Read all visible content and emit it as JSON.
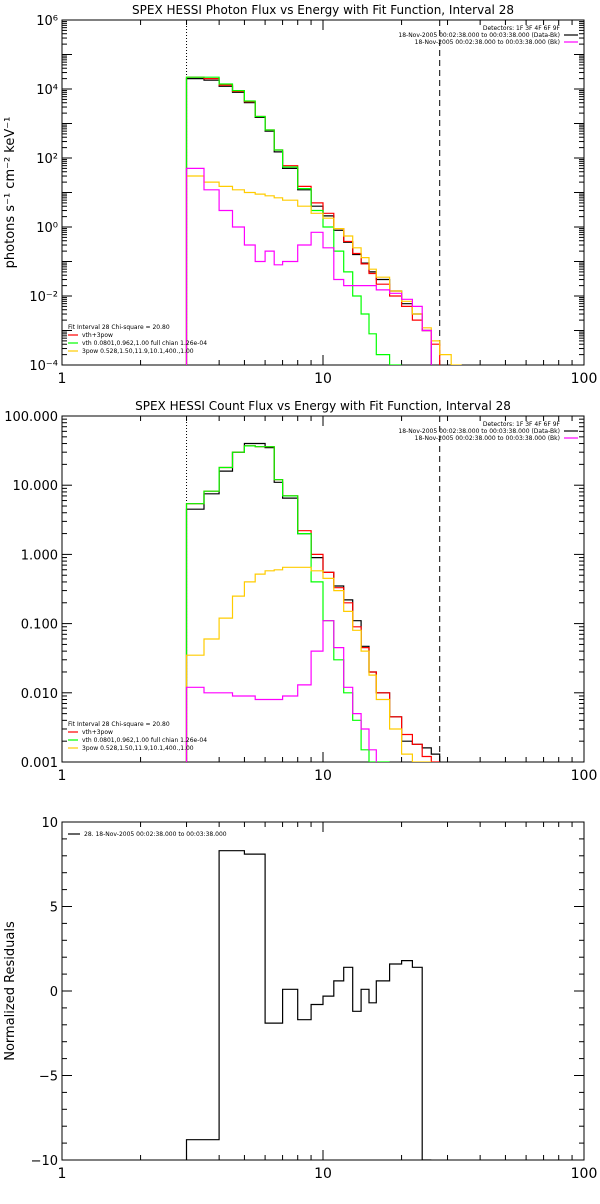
{
  "chart_data": [
    {
      "type": "line",
      "title": "SPEX HESSI Photon Flux vs Energy with Fit Function, Interval 28",
      "ylabel": "photons s⁻¹ cm⁻² keV⁻¹",
      "xlabel": "",
      "xscale": "log",
      "yscale": "log",
      "xlim": [
        1,
        100
      ],
      "ylim": [
        0.0001,
        1000000
      ],
      "xticks": [
        {
          "v": 1,
          "label": "1"
        },
        {
          "v": 10,
          "label": "10"
        },
        {
          "v": 100,
          "label": "100"
        }
      ],
      "yticks": [
        {
          "v": 0.0001,
          "label": "10⁻⁴"
        },
        {
          "v": 0.01,
          "label": "10⁻²"
        },
        {
          "v": 1,
          "label": "10⁰"
        },
        {
          "v": 100,
          "label": "10²"
        },
        {
          "v": 10000,
          "label": "10⁴"
        },
        {
          "v": 1000000,
          "label": "10⁶"
        }
      ],
      "vlines": [
        {
          "x": 3,
          "style": "dotted"
        },
        {
          "x": 28,
          "style": "dashed"
        }
      ],
      "legend_top_right": [
        {
          "text": "Detectors: 1F 3F 4F 6F 9F",
          "color": ""
        },
        {
          "text": "18-Nov-2005 00:02:38.000 to 00:03:38.000 (Data-Bk)",
          "color": "#000000"
        },
        {
          "text": "18-Nov-2005 00:02:38.000 to 00:03:38.000 (Bk)",
          "color": "#ff00ff"
        }
      ],
      "legend_bottom_left": [
        {
          "text": "Fit Interval 28   Chi-square = 20.80",
          "color": ""
        },
        {
          "text": "vth+3pow",
          "color": "#ff0000"
        },
        {
          "text": "vth 0.0801,0.962,1.00  full chian 1.26e-04",
          "color": "#00ff00"
        },
        {
          "text": "3pow 0.528,1.50,11.9,10.1,400.,1.00",
          "color": "#ffcc00"
        }
      ],
      "edges": [
        3,
        3.5,
        4,
        4.5,
        5,
        5.5,
        6,
        6.5,
        7,
        8,
        9,
        10,
        11,
        12,
        13,
        14,
        15,
        16,
        18,
        20,
        22,
        24,
        26,
        28,
        31,
        34
      ],
      "series": [
        {
          "name": "Data-Bk",
          "color": "#000000",
          "values": [
            20000,
            18000,
            12000,
            8000,
            4000,
            1500,
            600,
            150,
            50,
            12,
            4,
            2.1,
            0.8,
            0.36,
            0.16,
            0.09,
            0.05,
            0.03,
            0.014,
            0.006,
            0.003,
            0.001
          ]
        },
        {
          "name": "vth+3pow",
          "color": "#ff0000",
          "values": [
            22000,
            20000,
            13000,
            8500,
            4300,
            1600,
            650,
            170,
            60,
            15,
            5,
            2.5,
            0.9,
            0.38,
            0.17,
            0.085,
            0.045,
            0.022,
            0.01,
            0.005,
            0.002,
            0.001,
            0.0004
          ]
        },
        {
          "name": "vth",
          "color": "#00ff00",
          "values": [
            22000,
            22000,
            14000,
            9000,
            4500,
            1600,
            650,
            170,
            55,
            13,
            3,
            1,
            0.2,
            0.05,
            0.01,
            0.003,
            0.0008,
            0.0002,
            3e-05
          ]
        },
        {
          "name": "3pow",
          "color": "#ffcc00",
          "values": [
            30,
            20,
            15,
            12,
            10,
            9,
            8,
            7,
            6,
            4,
            2.5,
            1.8,
            0.9,
            0.55,
            0.25,
            0.13,
            0.06,
            0.035,
            0.014,
            0.007,
            0.003,
            0.0012,
            0.0005,
            0.0002,
            0.0001
          ]
        },
        {
          "name": "Bk",
          "color": "#ff00ff",
          "values": [
            50,
            12,
            3,
            1,
            0.3,
            0.1,
            0.2,
            0.08,
            0.1,
            0.3,
            0.7,
            0.25,
            0.03,
            0.02,
            0.02,
            0.02,
            0.02,
            0.015,
            0.012,
            0.008,
            0.005,
            0.001
          ]
        }
      ]
    },
    {
      "type": "line",
      "title": "SPEX HESSI Count Flux vs Energy with Fit Function, Interval 28",
      "ylabel": "",
      "xlabel": "",
      "xscale": "log",
      "yscale": "log",
      "xlim": [
        1,
        100
      ],
      "ylim": [
        0.001,
        100
      ],
      "xticks": [
        {
          "v": 1,
          "label": "1"
        },
        {
          "v": 10,
          "label": "10"
        },
        {
          "v": 100,
          "label": "100"
        }
      ],
      "yticks": [
        {
          "v": 0.001,
          "label": "0.001"
        },
        {
          "v": 0.01,
          "label": "0.010"
        },
        {
          "v": 0.1,
          "label": "0.100"
        },
        {
          "v": 1,
          "label": "1.000"
        },
        {
          "v": 10,
          "label": "10.000"
        },
        {
          "v": 100,
          "label": "100.000"
        }
      ],
      "vlines": [
        {
          "x": 3,
          "style": "dotted"
        },
        {
          "x": 28,
          "style": "dashed"
        }
      ],
      "legend_top_right": [
        {
          "text": "Detectors: 1F 3F 4F 6F 9F",
          "color": ""
        },
        {
          "text": "18-Nov-2005 00:02:38.000 to 00:03:38.000 (Data-Bk)",
          "color": "#000000"
        },
        {
          "text": "18-Nov-2005 00:02:38.000 to 00:03:38.000 (Bk)",
          "color": "#ff00ff"
        }
      ],
      "legend_bottom_left": [
        {
          "text": "Fit Interval 28   Chi-square = 20.80",
          "color": ""
        },
        {
          "text": "vth+3pow",
          "color": "#ff0000"
        },
        {
          "text": "vth 0.0801,0.962,1.00  full chian 1.26e-04",
          "color": "#00ff00"
        },
        {
          "text": "3pow 0.528,1.50,11.9,10.1,400.,1.00",
          "color": "#ffcc00"
        }
      ],
      "edges": [
        3,
        3.5,
        4,
        4.5,
        5,
        5.5,
        6,
        6.5,
        7,
        8,
        9,
        10,
        11,
        12,
        13,
        14,
        15,
        16,
        18,
        20,
        22,
        24,
        26,
        28,
        31
      ],
      "series": [
        {
          "name": "Data-Bk",
          "color": "#000000",
          "values": [
            4.5,
            7.5,
            16,
            30,
            40,
            40,
            35,
            11,
            6.5,
            2,
            0.9,
            0.55,
            0.35,
            0.22,
            0.11,
            0.047,
            0.02,
            0.01,
            0.0045,
            0.002,
            0.0018,
            0.0016,
            0.0013
          ]
        },
        {
          "name": "vth+3pow",
          "color": "#ff0000",
          "values": [
            5.4,
            8.2,
            18,
            30,
            37,
            36,
            36,
            12,
            7,
            2.2,
            1,
            0.55,
            0.33,
            0.2,
            0.09,
            0.045,
            0.02,
            0.01,
            0.0045,
            0.0025,
            0.0018,
            0.0012,
            0.0008
          ]
        },
        {
          "name": "vth",
          "color": "#00ff00",
          "values": [
            5.4,
            8.2,
            18,
            30,
            37,
            36,
            36,
            12,
            7,
            2,
            0.4,
            0.11,
            0.03,
            0.01,
            0.004,
            0.0015,
            0.0008,
            0.0003
          ]
        },
        {
          "name": "3pow",
          "color": "#ffcc00",
          "values": [
            0.035,
            0.06,
            0.12,
            0.25,
            0.4,
            0.52,
            0.58,
            0.6,
            0.65,
            0.65,
            0.58,
            0.45,
            0.3,
            0.15,
            0.08,
            0.04,
            0.018,
            0.008,
            0.003,
            0.0013,
            0.0008,
            0.0005
          ]
        },
        {
          "name": "Bk",
          "color": "#ff00ff",
          "values": [
            0.012,
            0.01,
            0.01,
            0.009,
            0.009,
            0.008,
            0.008,
            0.008,
            0.009,
            0.013,
            0.04,
            0.11,
            0.045,
            0.012,
            0.005,
            0.003,
            0.0015
          ]
        }
      ]
    },
    {
      "type": "line",
      "title": "",
      "ylabel": "Normalized Residuals",
      "xlabel": "",
      "xscale": "log",
      "yscale": "linear",
      "xlim": [
        1,
        100
      ],
      "ylim": [
        -10,
        10
      ],
      "xticks": [
        {
          "v": 1,
          "label": "1"
        },
        {
          "v": 10,
          "label": "10"
        },
        {
          "v": 100,
          "label": "100"
        }
      ],
      "yticks": [
        {
          "v": -10,
          "label": "−10"
        },
        {
          "v": -5,
          "label": "−5"
        },
        {
          "v": 0,
          "label": "0"
        },
        {
          "v": 5,
          "label": "5"
        },
        {
          "v": 10,
          "label": "10"
        }
      ],
      "vlines": [],
      "legend_top_left": [
        {
          "text": "28. 18-Nov-2005 00:02:38.000 to 00:03:38.000",
          "color": "#000000"
        }
      ],
      "edges": [
        3,
        4,
        5,
        6,
        7,
        8,
        9,
        10,
        11,
        12,
        13,
        14,
        15,
        16,
        18,
        20,
        22,
        24,
        26,
        28
      ],
      "series": [
        {
          "name": "28. 18-Nov-2005 00:02:38.000 to 00:03:38.000",
          "color": "#000000",
          "values": [
            -8.8,
            8.3,
            8.1,
            -1.9,
            0.1,
            -1.7,
            -0.8,
            -0.3,
            0.6,
            1.4,
            -1.2,
            0.1,
            -0.7,
            0.6,
            1.6,
            1.8,
            1.4,
            -10
          ]
        }
      ]
    }
  ]
}
